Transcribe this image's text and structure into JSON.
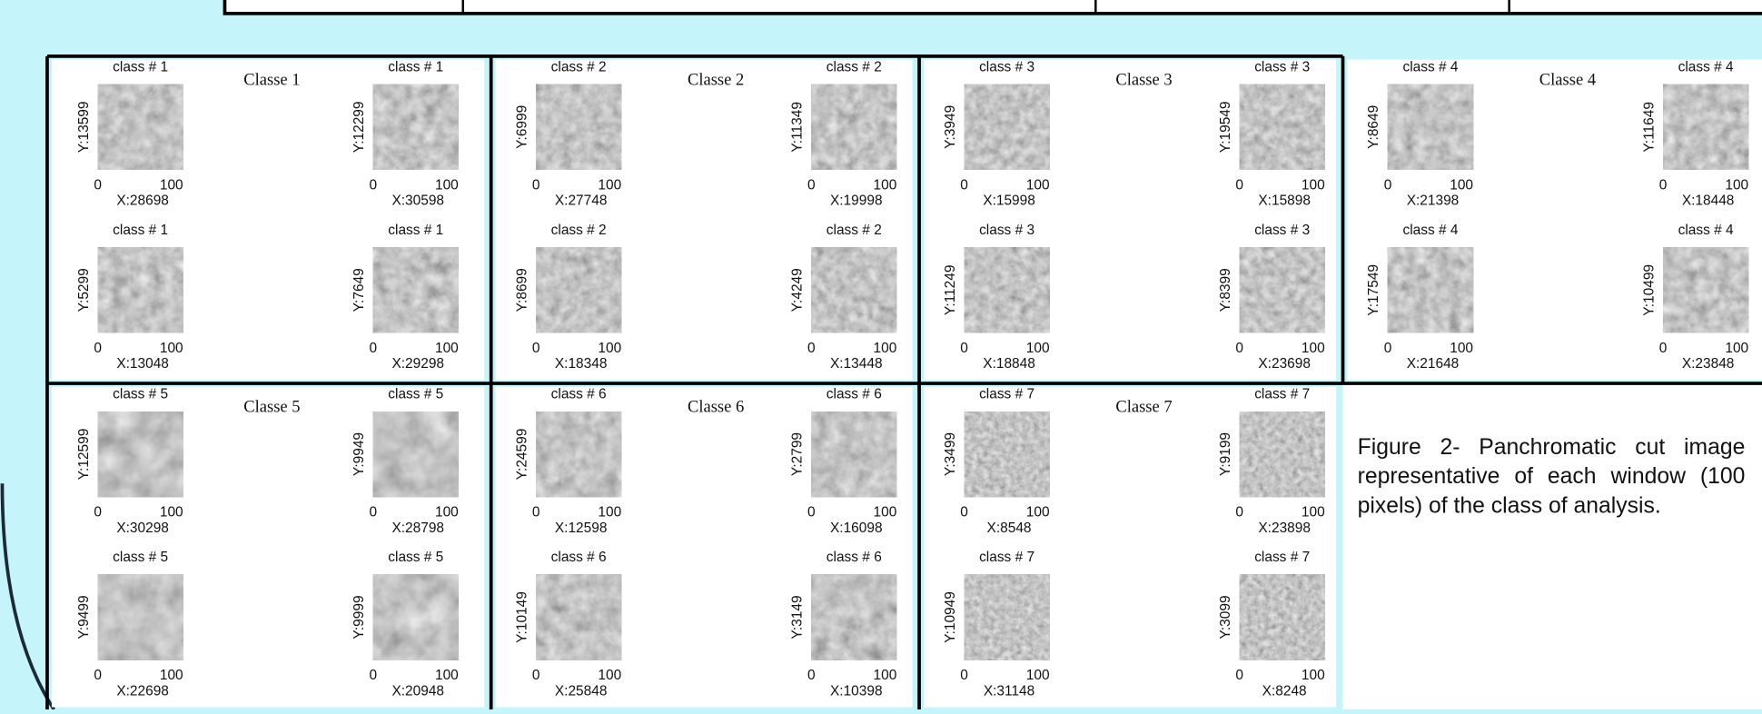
{
  "x_ticks": [
    "0",
    "100"
  ],
  "panels": [
    {
      "title": "Classe 1",
      "thumbs": [
        {
          "label": "class # 1",
          "y": "Y:13599",
          "x": "X:28698"
        },
        {
          "label": "class # 1",
          "y": "Y:12299",
          "x": "X:30598"
        },
        {
          "label": "class # 1",
          "y": "Y:5299",
          "x": "X:13048"
        },
        {
          "label": "class # 1",
          "y": "Y:7649",
          "x": "X:29298"
        }
      ]
    },
    {
      "title": "Classe 2",
      "thumbs": [
        {
          "label": "class # 2",
          "y": "Y:6999",
          "x": "X:27748"
        },
        {
          "label": "class # 2",
          "y": "Y:11349",
          "x": "X:19998"
        },
        {
          "label": "class # 2",
          "y": "Y:8699",
          "x": "X:18348"
        },
        {
          "label": "class # 2",
          "y": "Y:4249",
          "x": "X:13448"
        }
      ]
    },
    {
      "title": "Classe 3",
      "thumbs": [
        {
          "label": "class # 3",
          "y": "Y:3949",
          "x": "X:15998"
        },
        {
          "label": "class # 3",
          "y": "Y:19549",
          "x": "X:15898"
        },
        {
          "label": "class # 3",
          "y": "Y:11249",
          "x": "X:18848"
        },
        {
          "label": "class # 3",
          "y": "Y:8399",
          "x": "X:23698"
        }
      ]
    },
    {
      "title": "Classe 4",
      "thumbs": [
        {
          "label": "class # 4",
          "y": "Y:8649",
          "x": "X:21398"
        },
        {
          "label": "class # 4",
          "y": "Y:11649",
          "x": "X:18448"
        },
        {
          "label": "class # 4",
          "y": "Y:17549",
          "x": "X:21648"
        },
        {
          "label": "class # 4",
          "y": "Y:10499",
          "x": "X:23848"
        }
      ]
    },
    {
      "title": "Classe 5",
      "thumbs": [
        {
          "label": "class # 5",
          "y": "Y:12599",
          "x": "X:30298"
        },
        {
          "label": "class # 5",
          "y": "Y:9949",
          "x": "X:28798"
        },
        {
          "label": "class # 5",
          "y": "Y:9499",
          "x": "X:22698"
        },
        {
          "label": "class # 5",
          "y": "Y:9999",
          "x": "X:20948"
        }
      ]
    },
    {
      "title": "Classe 6",
      "thumbs": [
        {
          "label": "class # 6",
          "y": "Y:24599",
          "x": "X:12598"
        },
        {
          "label": "class # 6",
          "y": "Y:2799",
          "x": "X:16098"
        },
        {
          "label": "class # 6",
          "y": "Y:10149",
          "x": "X:25848"
        },
        {
          "label": "class # 6",
          "y": "Y:3149",
          "x": "X:10398"
        }
      ]
    },
    {
      "title": "Classe 7",
      "thumbs": [
        {
          "label": "class # 7",
          "y": "Y:3499",
          "x": "X:8548"
        },
        {
          "label": "class # 7",
          "y": "Y:9199",
          "x": "X:23898"
        },
        {
          "label": "class # 7",
          "y": "Y:10949",
          "x": "X:31148"
        },
        {
          "label": "class # 7",
          "y": "Y:3099",
          "x": "X:8248"
        }
      ]
    }
  ],
  "caption": "Figure 2- Panchromatic cut image representative of each window (100 pixels) of the class of analysis."
}
